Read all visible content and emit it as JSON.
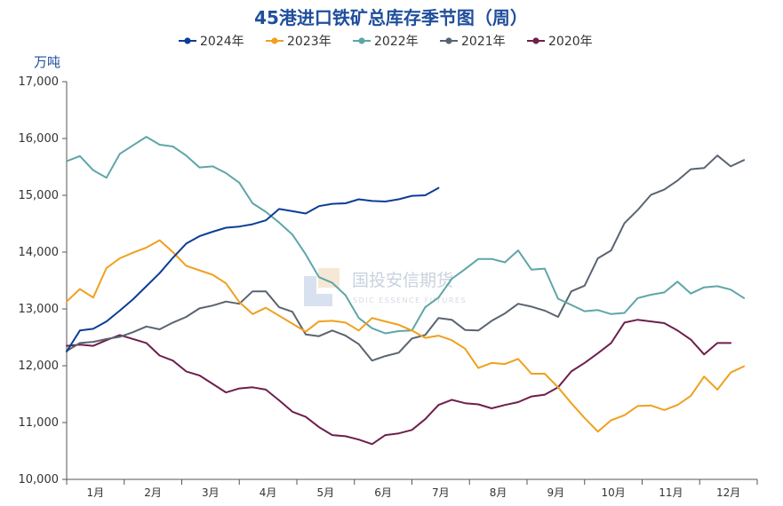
{
  "chart_data": {
    "type": "line",
    "title": "45港进口铁矿总库存季节图（周）",
    "ylabel": "万吨",
    "xlabel": "",
    "ylim": [
      10000,
      17000
    ],
    "y_ticks": [
      "10,000",
      "11,000",
      "12,000",
      "13,000",
      "14,000",
      "15,000",
      "16,000",
      "17,000"
    ],
    "x_unit": "week",
    "x_range": [
      1,
      53
    ],
    "months": [
      "1月",
      "2月",
      "3月",
      "4月",
      "5月",
      "6月",
      "7月",
      "8月",
      "9月",
      "10月",
      "11月",
      "12月"
    ],
    "legend_position": "top",
    "grid": false,
    "series": [
      {
        "name": "2024年",
        "color": "#0b3e96",
        "values": [
          12250,
          12620,
          12650,
          12780,
          12970,
          13170,
          13400,
          13630,
          13900,
          14150,
          14280,
          14360,
          14430,
          14450,
          14490,
          14560,
          14760,
          14720,
          14680,
          14810,
          14850,
          14860,
          14930,
          14900,
          14890,
          14930,
          14990,
          15000,
          15130
        ]
      },
      {
        "name": "2023年",
        "color": "#f0a01e",
        "values": [
          13130,
          13350,
          13200,
          13720,
          13890,
          13990,
          14080,
          14210,
          14000,
          13760,
          13680,
          13600,
          13450,
          13120,
          12910,
          13020,
          12880,
          12740,
          12600,
          12780,
          12790,
          12760,
          12620,
          12840,
          12780,
          12720,
          12620,
          12490,
          12530,
          12450,
          12300,
          11960,
          12050,
          12030,
          12120,
          11860,
          11860,
          11620,
          11340,
          11080,
          10840,
          11040,
          11130,
          11290,
          11300,
          11220,
          11310,
          11470,
          11810,
          11580,
          11880,
          11990
        ]
      },
      {
        "name": "2022年",
        "color": "#5fa5a8",
        "values": [
          15600,
          15690,
          15440,
          15310,
          15730,
          15880,
          16030,
          15890,
          15860,
          15700,
          15490,
          15510,
          15390,
          15220,
          14860,
          14710,
          14520,
          14310,
          13960,
          13560,
          13460,
          13240,
          12840,
          12660,
          12570,
          12610,
          12620,
          13030,
          13200,
          13530,
          13700,
          13880,
          13880,
          13820,
          14030,
          13690,
          13710,
          13180,
          13070,
          12960,
          12980,
          12910,
          12930,
          13190,
          13250,
          13290,
          13480,
          13270,
          13380,
          13400,
          13340,
          13190
        ]
      },
      {
        "name": "2021年",
        "color": "#5a6470",
        "values": [
          12260,
          12400,
          12420,
          12470,
          12510,
          12590,
          12690,
          12640,
          12760,
          12860,
          13010,
          13060,
          13130,
          13090,
          13310,
          13310,
          13030,
          12950,
          12550,
          12520,
          12620,
          12530,
          12380,
          12090,
          12170,
          12230,
          12480,
          12540,
          12840,
          12810,
          12630,
          12620,
          12790,
          12920,
          13090,
          13040,
          12970,
          12860,
          13310,
          13410,
          13890,
          14030,
          14510,
          14740,
          15010,
          15100,
          15260,
          15460,
          15480,
          15700,
          15510,
          15620
        ]
      },
      {
        "name": "2020年",
        "color": "#6e1f4c",
        "values": [
          12350,
          12370,
          12350,
          12450,
          12540,
          12470,
          12400,
          12180,
          12090,
          11900,
          11830,
          11680,
          11530,
          11600,
          11620,
          11580,
          11390,
          11190,
          11100,
          10920,
          10780,
          10760,
          10700,
          10620,
          10780,
          10810,
          10870,
          11060,
          11310,
          11400,
          11340,
          11320,
          11250,
          11310,
          11360,
          11460,
          11490,
          11620,
          11900,
          12050,
          12220,
          12400,
          12760,
          12810,
          12780,
          12750,
          12620,
          12460,
          12200,
          12400,
          12400
        ]
      }
    ]
  },
  "watermark": {
    "name": "国投安信期货",
    "sub": "SDIC ESSENCE FUTURES"
  }
}
